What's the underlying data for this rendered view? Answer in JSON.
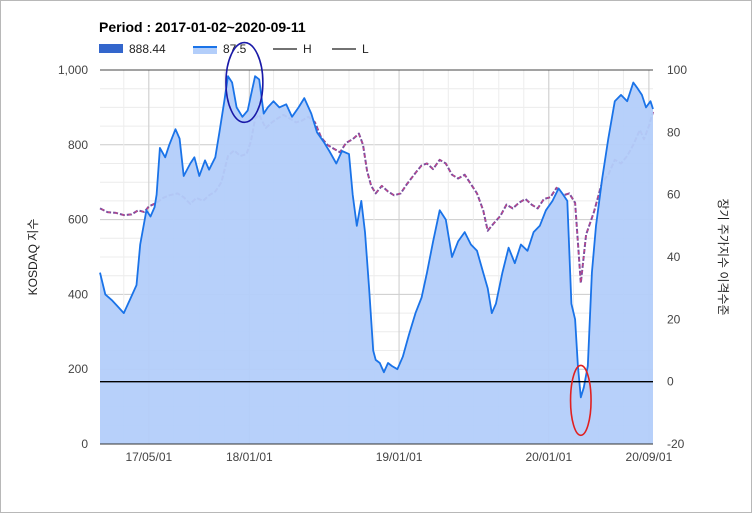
{
  "chart_data": {
    "type": "line",
    "title": "Period : 2017-01-02~2020-09-11",
    "legend": [
      {
        "label": "888.44",
        "color": "#3366cc",
        "style": "box"
      },
      {
        "label": "87.5",
        "color": "#1a73e8",
        "style": "line-fill"
      },
      {
        "label": "H",
        "color": "#444444",
        "style": "line"
      },
      {
        "label": "L",
        "color": "#444444",
        "style": "line"
      }
    ],
    "ylabel_left": "KOSDAQ 지수",
    "ylabel_right": "장기 주가지수 이격수준",
    "ylim_left": [
      0,
      1000
    ],
    "ylim_right": [
      -20,
      100
    ],
    "yticks_left": [
      "0",
      "200",
      "400",
      "600",
      "800",
      "1,000"
    ],
    "yticks_right": [
      "-20",
      "0",
      "20",
      "40",
      "60",
      "80",
      "100"
    ],
    "xlim": [
      "2017-01-02",
      "2020-09-11"
    ],
    "xticks": [
      {
        "date": "2017-05-01",
        "label": "17/05/01"
      },
      {
        "date": "2018-01-01",
        "label": "18/01/01"
      },
      {
        "date": "2019-01-01",
        "label": "19/01/01"
      },
      {
        "date": "2020-01-01",
        "label": "20/01/01"
      },
      {
        "date": "2020-09-01",
        "label": "20/09/01"
      }
    ],
    "grid": true,
    "legend_position": "top-left",
    "reference_lines": [
      {
        "name": "H",
        "axis": "right",
        "value": 100,
        "color": "#444444"
      },
      {
        "name": "L",
        "axis": "right",
        "value": 0,
        "color": "#000000"
      }
    ],
    "series": [
      {
        "name": "888.44",
        "axis": "left",
        "color": "#7b4fa0",
        "points": [
          [
            "2017-01-02",
            630
          ],
          [
            "2017-01-20",
            620
          ],
          [
            "2017-02-10",
            618
          ],
          [
            "2017-03-01",
            612
          ],
          [
            "2017-03-20",
            614
          ],
          [
            "2017-04-05",
            625
          ],
          [
            "2017-04-20",
            620
          ],
          [
            "2017-05-01",
            635
          ],
          [
            "2017-05-20",
            645
          ],
          [
            "2017-06-05",
            658
          ],
          [
            "2017-06-20",
            665
          ],
          [
            "2017-07-10",
            670
          ],
          [
            "2017-07-25",
            660
          ],
          [
            "2017-08-10",
            642
          ],
          [
            "2017-08-25",
            658
          ],
          [
            "2017-09-10",
            650
          ],
          [
            "2017-09-25",
            665
          ],
          [
            "2017-10-10",
            675
          ],
          [
            "2017-10-25",
            700
          ],
          [
            "2017-11-10",
            770
          ],
          [
            "2017-11-25",
            785
          ],
          [
            "2017-12-10",
            770
          ],
          [
            "2017-12-25",
            775
          ],
          [
            "2018-01-05",
            810
          ],
          [
            "2018-01-15",
            870
          ],
          [
            "2018-01-25",
            880
          ],
          [
            "2018-02-10",
            845
          ],
          [
            "2018-02-25",
            860
          ],
          [
            "2018-03-10",
            870
          ],
          [
            "2018-03-25",
            880
          ],
          [
            "2018-04-10",
            870
          ],
          [
            "2018-04-25",
            860
          ],
          [
            "2018-05-10",
            865
          ],
          [
            "2018-05-25",
            875
          ],
          [
            "2018-06-10",
            860
          ],
          [
            "2018-06-25",
            820
          ],
          [
            "2018-07-10",
            800
          ],
          [
            "2018-07-25",
            790
          ],
          [
            "2018-08-10",
            780
          ],
          [
            "2018-08-25",
            805
          ],
          [
            "2018-09-10",
            815
          ],
          [
            "2018-09-25",
            830
          ],
          [
            "2018-10-05",
            800
          ],
          [
            "2018-10-15",
            730
          ],
          [
            "2018-10-25",
            690
          ],
          [
            "2018-11-05",
            670
          ],
          [
            "2018-11-20",
            690
          ],
          [
            "2018-12-05",
            675
          ],
          [
            "2018-12-20",
            665
          ],
          [
            "2019-01-05",
            670
          ],
          [
            "2019-01-20",
            695
          ],
          [
            "2019-02-10",
            725
          ],
          [
            "2019-02-25",
            745
          ],
          [
            "2019-03-10",
            750
          ],
          [
            "2019-03-25",
            735
          ],
          [
            "2019-04-10",
            760
          ],
          [
            "2019-04-25",
            750
          ],
          [
            "2019-05-10",
            720
          ],
          [
            "2019-05-25",
            710
          ],
          [
            "2019-06-10",
            720
          ],
          [
            "2019-06-25",
            695
          ],
          [
            "2019-07-10",
            670
          ],
          [
            "2019-07-25",
            625
          ],
          [
            "2019-08-05",
            570
          ],
          [
            "2019-08-20",
            590
          ],
          [
            "2019-09-05",
            610
          ],
          [
            "2019-09-20",
            640
          ],
          [
            "2019-10-05",
            630
          ],
          [
            "2019-10-20",
            645
          ],
          [
            "2019-11-05",
            655
          ],
          [
            "2019-11-20",
            640
          ],
          [
            "2019-12-05",
            630
          ],
          [
            "2019-12-20",
            655
          ],
          [
            "2020-01-05",
            660
          ],
          [
            "2020-01-20",
            685
          ],
          [
            "2020-02-05",
            665
          ],
          [
            "2020-02-20",
            670
          ],
          [
            "2020-03-05",
            645
          ],
          [
            "2020-03-19",
            430
          ],
          [
            "2020-04-01",
            560
          ],
          [
            "2020-04-20",
            620
          ],
          [
            "2020-05-10",
            700
          ],
          [
            "2020-05-25",
            720
          ],
          [
            "2020-06-10",
            760
          ],
          [
            "2020-06-25",
            750
          ],
          [
            "2020-07-10",
            770
          ],
          [
            "2020-07-25",
            800
          ],
          [
            "2020-08-10",
            840
          ],
          [
            "2020-08-20",
            815
          ],
          [
            "2020-09-01",
            850
          ],
          [
            "2020-09-11",
            888
          ]
        ]
      },
      {
        "name": "87.5",
        "axis": "right",
        "color": "#1a73e8",
        "fill": "#b3cefa",
        "points": [
          [
            "2017-01-02",
            35
          ],
          [
            "2017-01-15",
            28
          ],
          [
            "2017-02-01",
            26
          ],
          [
            "2017-02-15",
            24
          ],
          [
            "2017-03-01",
            22
          ],
          [
            "2017-03-15",
            26
          ],
          [
            "2017-04-01",
            31
          ],
          [
            "2017-04-10",
            44
          ],
          [
            "2017-04-25",
            55
          ],
          [
            "2017-05-05",
            53
          ],
          [
            "2017-05-15",
            56
          ],
          [
            "2017-05-20",
            60
          ],
          [
            "2017-05-28",
            75
          ],
          [
            "2017-06-10",
            72
          ],
          [
            "2017-06-20",
            76
          ],
          [
            "2017-07-05",
            81
          ],
          [
            "2017-07-15",
            78
          ],
          [
            "2017-07-25",
            66
          ],
          [
            "2017-08-10",
            70
          ],
          [
            "2017-08-20",
            72
          ],
          [
            "2017-09-01",
            66
          ],
          [
            "2017-09-15",
            71
          ],
          [
            "2017-09-25",
            68
          ],
          [
            "2017-10-10",
            72
          ],
          [
            "2017-10-20",
            80
          ],
          [
            "2017-11-01",
            90
          ],
          [
            "2017-11-10",
            98
          ],
          [
            "2017-11-20",
            96
          ],
          [
            "2017-12-01",
            88
          ],
          [
            "2017-12-15",
            85
          ],
          [
            "2017-12-28",
            87
          ],
          [
            "2018-01-05",
            92
          ],
          [
            "2018-01-15",
            98
          ],
          [
            "2018-01-25",
            97
          ],
          [
            "2018-02-05",
            86
          ],
          [
            "2018-02-15",
            88
          ],
          [
            "2018-03-01",
            90
          ],
          [
            "2018-03-15",
            88
          ],
          [
            "2018-04-01",
            89
          ],
          [
            "2018-04-15",
            85
          ],
          [
            "2018-05-01",
            88
          ],
          [
            "2018-05-15",
            91
          ],
          [
            "2018-06-01",
            86
          ],
          [
            "2018-06-15",
            80
          ],
          [
            "2018-07-01",
            77
          ],
          [
            "2018-07-15",
            74
          ],
          [
            "2018-08-01",
            70
          ],
          [
            "2018-08-15",
            74
          ],
          [
            "2018-09-01",
            73
          ],
          [
            "2018-09-10",
            60
          ],
          [
            "2018-09-20",
            50
          ],
          [
            "2018-10-01",
            58
          ],
          [
            "2018-10-10",
            48
          ],
          [
            "2018-10-20",
            30
          ],
          [
            "2018-10-30",
            10
          ],
          [
            "2018-11-05",
            7
          ],
          [
            "2018-11-15",
            6
          ],
          [
            "2018-11-25",
            3
          ],
          [
            "2018-12-05",
            6
          ],
          [
            "2018-12-15",
            5
          ],
          [
            "2018-12-28",
            4
          ],
          [
            "2019-01-10",
            8
          ],
          [
            "2019-01-25",
            15
          ],
          [
            "2019-02-10",
            22
          ],
          [
            "2019-02-25",
            27
          ],
          [
            "2019-03-10",
            35
          ],
          [
            "2019-03-25",
            45
          ],
          [
            "2019-04-10",
            55
          ],
          [
            "2019-04-25",
            52
          ],
          [
            "2019-05-10",
            40
          ],
          [
            "2019-05-25",
            45
          ],
          [
            "2019-06-10",
            48
          ],
          [
            "2019-06-25",
            44
          ],
          [
            "2019-07-10",
            42
          ],
          [
            "2019-07-25",
            35
          ],
          [
            "2019-08-05",
            30
          ],
          [
            "2019-08-15",
            22
          ],
          [
            "2019-08-25",
            25
          ],
          [
            "2019-09-10",
            35
          ],
          [
            "2019-09-25",
            43
          ],
          [
            "2019-10-10",
            38
          ],
          [
            "2019-10-25",
            44
          ],
          [
            "2019-11-10",
            42
          ],
          [
            "2019-11-25",
            48
          ],
          [
            "2019-12-10",
            50
          ],
          [
            "2019-12-25",
            55
          ],
          [
            "2020-01-10",
            58
          ],
          [
            "2020-01-25",
            62
          ],
          [
            "2020-02-05",
            60
          ],
          [
            "2020-02-15",
            58
          ],
          [
            "2020-02-25",
            25
          ],
          [
            "2020-03-05",
            20
          ],
          [
            "2020-03-12",
            5
          ],
          [
            "2020-03-19",
            -5
          ],
          [
            "2020-03-26",
            -2
          ],
          [
            "2020-04-05",
            5
          ],
          [
            "2020-04-15",
            35
          ],
          [
            "2020-04-25",
            50
          ],
          [
            "2020-05-10",
            65
          ],
          [
            "2020-05-25",
            78
          ],
          [
            "2020-06-10",
            90
          ],
          [
            "2020-06-25",
            92
          ],
          [
            "2020-07-10",
            90
          ],
          [
            "2020-07-25",
            96
          ],
          [
            "2020-08-05",
            94
          ],
          [
            "2020-08-15",
            92
          ],
          [
            "2020-08-25",
            88
          ],
          [
            "2020-09-05",
            90
          ],
          [
            "2020-09-11",
            87.5
          ]
        ]
      }
    ],
    "annotations": [
      {
        "type": "ellipse",
        "color": "#1a1aa8",
        "center_x_date": "2017-12-20",
        "center_y_right": 96,
        "rx_days": 90,
        "ry": 8
      },
      {
        "type": "ellipse",
        "color": "#e02020",
        "center_x_date": "2020-03-19",
        "center_y_right": -6,
        "rx_days": 50,
        "ry": 7
      }
    ]
  }
}
